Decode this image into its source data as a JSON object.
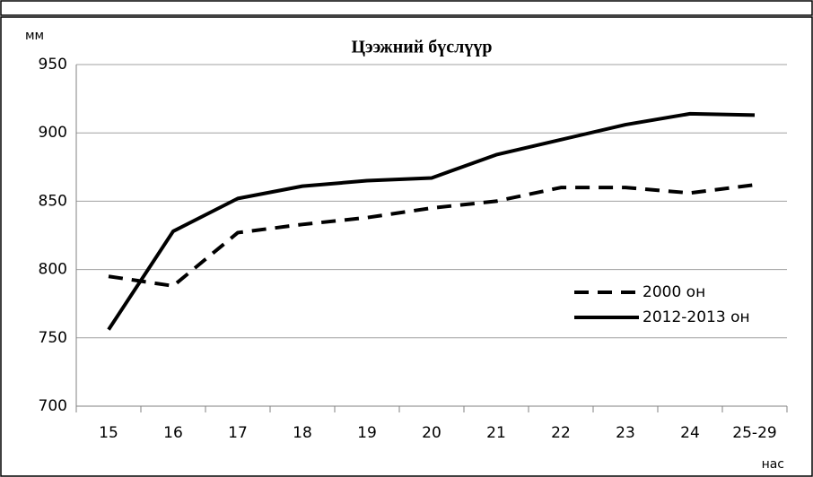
{
  "chart_data": {
    "type": "line",
    "title": "Цээжний бүслүүр",
    "y_label": "мм",
    "x_label": "нас",
    "categories": [
      "15",
      "16",
      "17",
      "18",
      "19",
      "20",
      "21",
      "22",
      "23",
      "24",
      "25-29"
    ],
    "series": [
      {
        "name": "2000 он",
        "color": "#000000",
        "style": "dashed",
        "values": [
          795,
          788,
          827,
          833,
          838,
          845,
          850,
          860,
          860,
          856,
          862
        ]
      },
      {
        "name": "2012-2013 он",
        "color": "#000000",
        "style": "solid",
        "values": [
          756,
          828,
          852,
          861,
          865,
          867,
          884,
          895,
          906,
          914,
          913
        ]
      }
    ],
    "ylim": [
      700,
      950
    ],
    "yticks": [
      700,
      750,
      800,
      850,
      900,
      950
    ],
    "grid": true,
    "legend": "right"
  }
}
